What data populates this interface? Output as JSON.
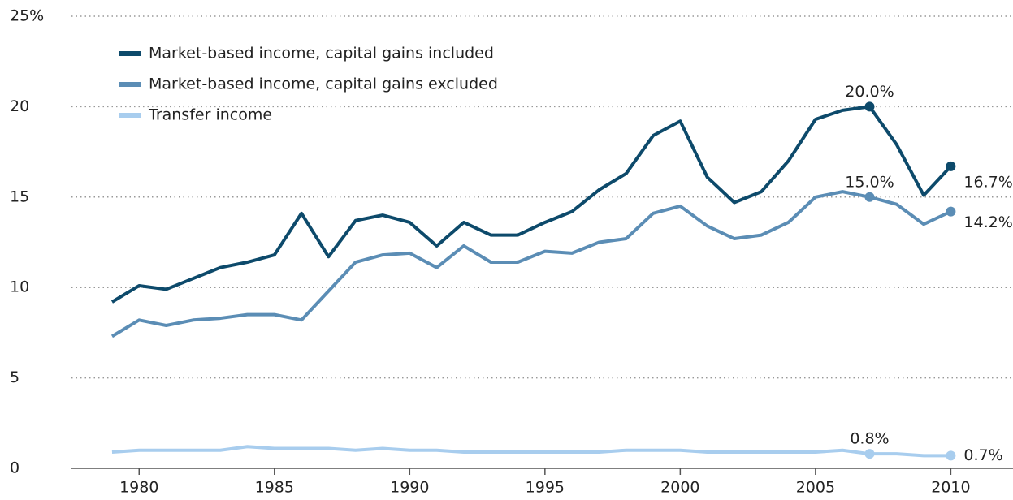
{
  "chart_data": {
    "type": "line",
    "x": [
      1979,
      1980,
      1981,
      1982,
      1983,
      1984,
      1985,
      1986,
      1987,
      1988,
      1989,
      1990,
      1991,
      1992,
      1993,
      1994,
      1995,
      1996,
      1997,
      1998,
      1999,
      2000,
      2001,
      2002,
      2003,
      2004,
      2005,
      2006,
      2007,
      2008,
      2009,
      2010
    ],
    "series": [
      {
        "name": "Market-based income, capital gains included",
        "color": "#0d4a6b",
        "values": [
          9.2,
          10.1,
          9.9,
          10.5,
          11.1,
          11.4,
          11.8,
          14.1,
          11.7,
          13.7,
          14.0,
          13.6,
          12.3,
          13.6,
          12.9,
          12.9,
          13.6,
          14.2,
          15.4,
          16.3,
          18.4,
          19.2,
          16.1,
          14.7,
          15.3,
          17.0,
          19.3,
          19.8,
          20.0,
          17.9,
          15.1,
          16.7
        ],
        "point_labels": [
          {
            "x": 2007,
            "label": "20.0%"
          },
          {
            "x": 2010,
            "label": "16.7%"
          }
        ]
      },
      {
        "name": "Market-based income, capital gains excluded",
        "color": "#5b8db5",
        "values": [
          7.3,
          8.2,
          7.9,
          8.2,
          8.3,
          8.5,
          8.5,
          8.2,
          9.8,
          11.4,
          11.8,
          11.9,
          11.1,
          12.3,
          11.4,
          11.4,
          12.0,
          11.9,
          12.5,
          12.7,
          14.1,
          14.5,
          13.4,
          12.7,
          12.9,
          13.6,
          15.0,
          15.3,
          15.0,
          14.6,
          13.5,
          14.2
        ],
        "point_labels": [
          {
            "x": 2007,
            "label": "15.0%"
          },
          {
            "x": 2010,
            "label": "14.2%"
          }
        ]
      },
      {
        "name": "Transfer income",
        "color": "#a8cdee",
        "values": [
          0.9,
          1.0,
          1.0,
          1.0,
          1.0,
          1.2,
          1.1,
          1.1,
          1.1,
          1.0,
          1.1,
          1.0,
          1.0,
          0.9,
          0.9,
          0.9,
          0.9,
          0.9,
          0.9,
          1.0,
          1.0,
          1.0,
          0.9,
          0.9,
          0.9,
          0.9,
          0.9,
          1.0,
          0.8,
          0.8,
          0.7,
          0.7
        ],
        "point_labels": [
          {
            "x": 2007,
            "label": "0.8%"
          },
          {
            "x": 2010,
            "label": "0.7%"
          }
        ]
      }
    ],
    "xlim": [
      1977.5,
      2012.3
    ],
    "xticks": [
      1980,
      1985,
      1990,
      1995,
      2000,
      2005,
      2010
    ],
    "ylim": [
      0,
      25
    ],
    "yticks": [
      0,
      5,
      10,
      15,
      20,
      {
        "value": 25,
        "label": "25%"
      }
    ],
    "grid": true,
    "legend": "upper left"
  }
}
